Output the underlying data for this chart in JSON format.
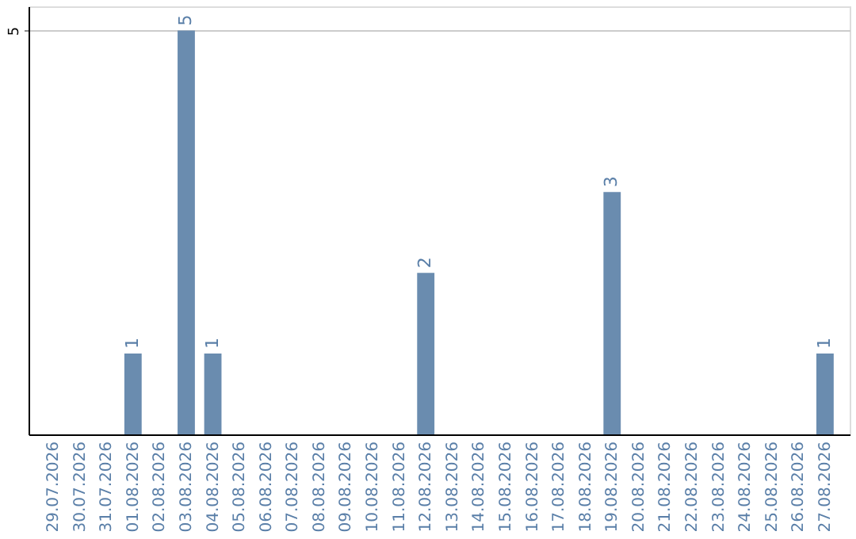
{
  "chart_data": {
    "type": "bar",
    "categories": [
      "29.07.2026",
      "30.07.2026",
      "31.07.2026",
      "01.08.2026",
      "02.08.2026",
      "03.08.2026",
      "04.08.2026",
      "05.08.2026",
      "06.08.2026",
      "07.08.2026",
      "08.08.2026",
      "09.08.2026",
      "10.08.2026",
      "11.08.2026",
      "12.08.2026",
      "13.08.2026",
      "14.08.2026",
      "15.08.2026",
      "16.08.2026",
      "17.08.2026",
      "18.08.2026",
      "19.08.2026",
      "20.08.2026",
      "21.08.2026",
      "22.08.2026",
      "23.08.2026",
      "24.08.2026",
      "25.08.2026",
      "26.08.2026",
      "27.08.2026"
    ],
    "values": [
      0,
      0,
      0,
      1,
      0,
      5,
      1,
      0,
      0,
      0,
      0,
      0,
      0,
      0,
      2,
      0,
      0,
      0,
      0,
      0,
      0,
      3,
      0,
      0,
      0,
      0,
      0,
      0,
      0,
      1
    ],
    "value_labels": [
      null,
      null,
      null,
      "1",
      null,
      "5",
      "1",
      null,
      null,
      null,
      null,
      null,
      null,
      null,
      "2",
      null,
      null,
      null,
      null,
      null,
      null,
      "3",
      null,
      null,
      null,
      null,
      null,
      null,
      null,
      "1"
    ],
    "color": "#6a8caf",
    "ylim": [
      0,
      5.3
    ],
    "yticks": [
      5
    ],
    "grid": "y"
  }
}
